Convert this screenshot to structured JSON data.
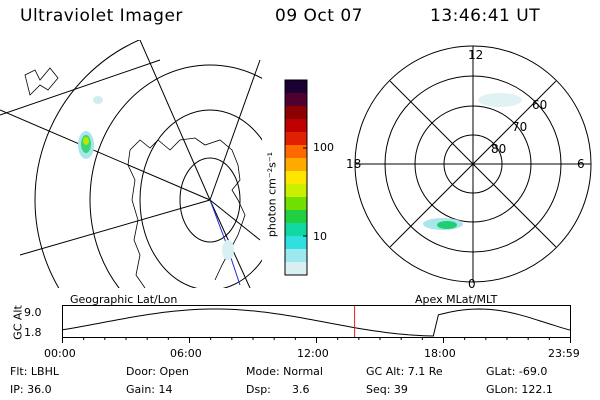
{
  "header": {
    "title": "Ultraviolet Imager",
    "date": "09 Oct 07",
    "time": "13:46:41 UT"
  },
  "colorbar": {
    "label": "photon cm⁻²s⁻¹",
    "ticks": [
      "100",
      "10"
    ],
    "colors": [
      "#1a0033",
      "#500030",
      "#8b0000",
      "#c00000",
      "#e02000",
      "#ff6a00",
      "#ffaa00",
      "#ffe600",
      "#c8f000",
      "#70e000",
      "#20d040",
      "#10d8a0",
      "#30e0e0",
      "#9ce8ee",
      "#d8f0f2"
    ]
  },
  "polar_plot": {
    "labels": {
      "top": "12",
      "bottom": "0",
      "left": "18",
      "right": "6"
    },
    "lat_labels": [
      "60",
      "70",
      "80"
    ]
  },
  "strip": {
    "left_title": "Geographic Lat/Lon",
    "right_title": "Apex MLat/MLT",
    "ylabel": "GC Alt",
    "y_ticks": [
      "9.0",
      "1.8"
    ],
    "x_ticks": [
      "00:00",
      "06:00",
      "12:00",
      "18:00",
      "23:59"
    ],
    "current_time_fraction": 0.575
  },
  "info": {
    "filter": "Flt: LBHL",
    "ip": "IP: 36.0",
    "door": "Door: Open",
    "gain": "Gain: 14",
    "mode": "Mode: Normal",
    "dsp_label": "Dsp:",
    "dsp_value": "3.6",
    "gc_alt": "GC Alt: 7.1 Re",
    "seq": "Seq: 39",
    "glat": "GLat: -69.0",
    "glon": "GLon: 122.1"
  }
}
